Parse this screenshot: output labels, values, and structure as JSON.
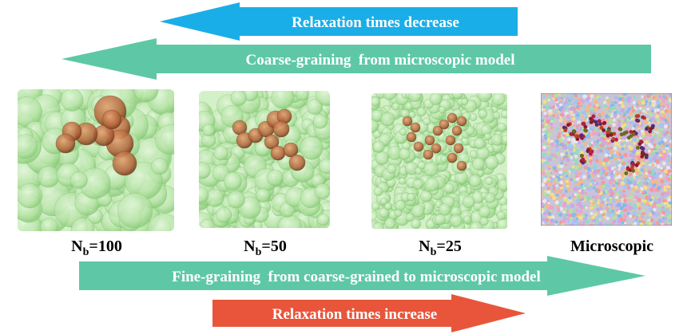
{
  "arrows": {
    "relaxation_decrease": "Relaxation times decrease",
    "coarse_graining": "Coarse-graining  from microscopic model",
    "fine_graining": "Fine-graining  from coarse-grained to microscopic model",
    "relaxation_increase": "Relaxation times increase"
  },
  "panels": [
    {
      "label_main": "N",
      "label_sub": "b",
      "label_rest": "=100"
    },
    {
      "label_main": "N",
      "label_sub": "b",
      "label_rest": "=50"
    },
    {
      "label_main": "N",
      "label_sub": "b",
      "label_rest": "=25"
    },
    {
      "label_main": "Microscopic",
      "label_sub": "",
      "label_rest": ""
    }
  ],
  "colors": {
    "arrow_blue": "#1aaee8",
    "arrow_teal": "#5ec8a6",
    "arrow_red": "#e8553a",
    "bead_green": "#b8e6a8",
    "bead_green_edge": "#8fcf82",
    "polymer_bead": "#b0663a"
  }
}
